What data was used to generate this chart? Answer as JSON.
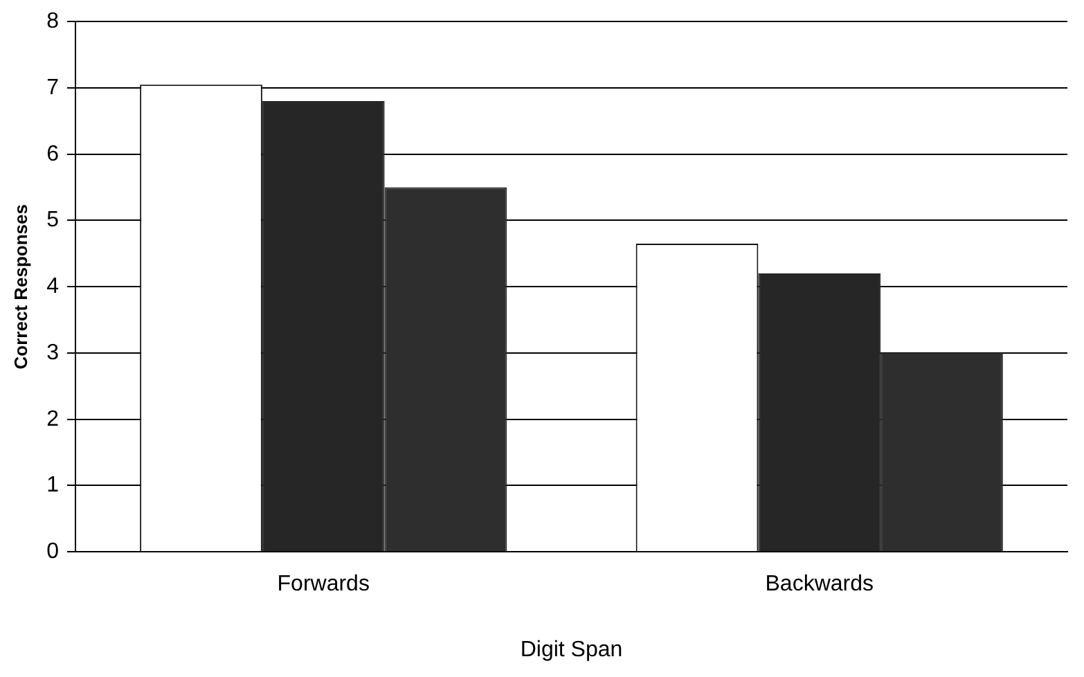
{
  "chart_data": {
    "type": "bar",
    "xlabel": "Digit Span",
    "ylabel": "Correct Responses",
    "categories": [
      "Forwards",
      "Backwards"
    ],
    "series": [
      {
        "color": "#ffffff",
        "values": [
          7.05,
          4.65
        ]
      },
      {
        "color": "#262626",
        "values": [
          6.8,
          4.2
        ]
      },
      {
        "color": "#2e2e2e",
        "values": [
          5.5,
          3.0
        ]
      }
    ],
    "ylim": [
      0,
      8
    ],
    "yticks": [
      0,
      1,
      2,
      3,
      4,
      5,
      6,
      7,
      8
    ],
    "grid": "y",
    "legend": false
  }
}
